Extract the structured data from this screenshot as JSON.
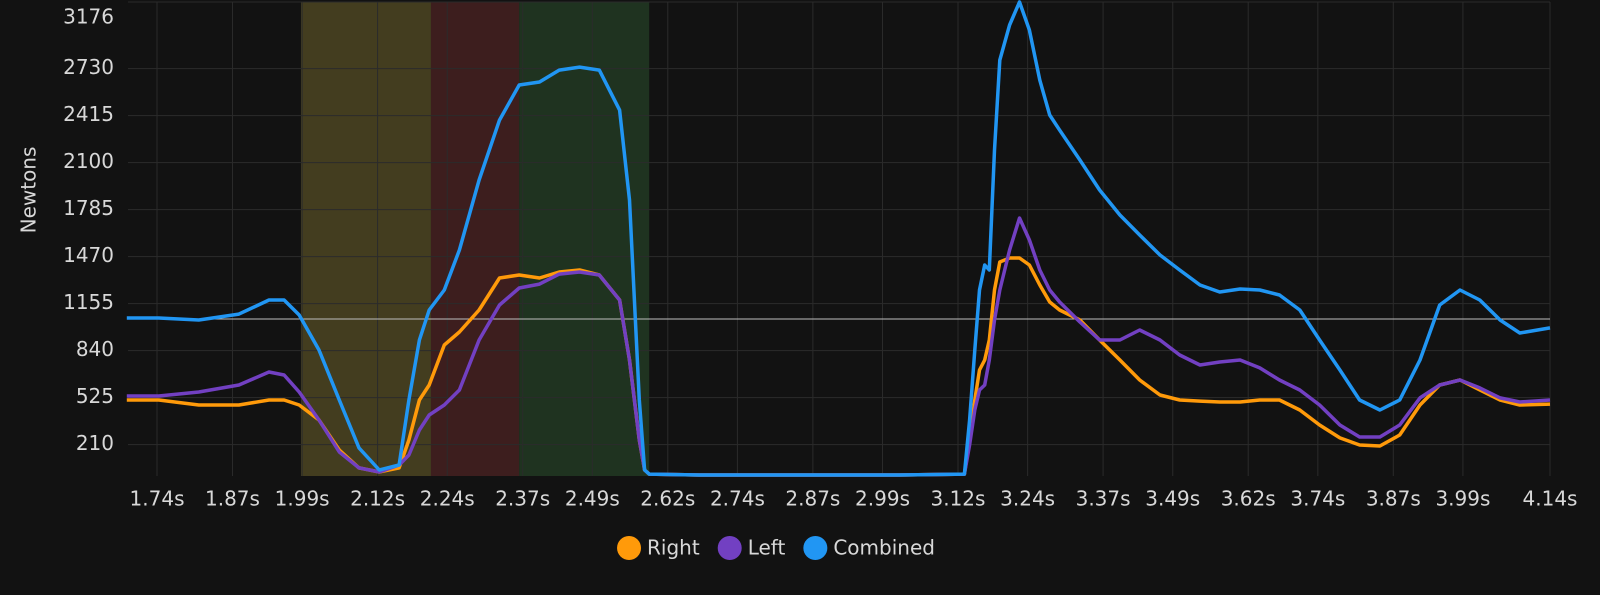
{
  "chart_data": {
    "type": "line",
    "y_label": "Newtons",
    "xlim": [
      1.69,
      4.14
    ],
    "ylim": [
      0,
      3176
    ],
    "xticks": [
      {
        "value": 1.74,
        "label": "1.74s"
      },
      {
        "value": 1.87,
        "label": "1.87s"
      },
      {
        "value": 1.99,
        "label": "1.99s"
      },
      {
        "value": 2.12,
        "label": "2.12s"
      },
      {
        "value": 2.24,
        "label": "2.24s"
      },
      {
        "value": 2.37,
        "label": "2.37s"
      },
      {
        "value": 2.49,
        "label": "2.49s"
      },
      {
        "value": 2.62,
        "label": "2.62s"
      },
      {
        "value": 2.74,
        "label": "2.74s"
      },
      {
        "value": 2.87,
        "label": "2.87s"
      },
      {
        "value": 2.99,
        "label": "2.99s"
      },
      {
        "value": 3.12,
        "label": "3.12s"
      },
      {
        "value": 3.24,
        "label": "3.24s"
      },
      {
        "value": 3.37,
        "label": "3.37s"
      },
      {
        "value": 3.49,
        "label": "3.49s"
      },
      {
        "value": 3.62,
        "label": "3.62s"
      },
      {
        "value": 3.74,
        "label": "3.74s"
      },
      {
        "value": 3.87,
        "label": "3.87s"
      },
      {
        "value": 3.99,
        "label": "3.99s"
      },
      {
        "value": 4.14,
        "label": "4.14s"
      }
    ],
    "yticks": [
      210,
      525,
      840,
      1155,
      1470,
      1785,
      2100,
      2415,
      2730,
      3176
    ],
    "grid": true,
    "reference_line": 1052,
    "regions": [
      {
        "start": 1.988,
        "end": 2.212,
        "color": "#433d1f"
      },
      {
        "start": 2.212,
        "end": 2.364,
        "color": "#3d1e1e"
      },
      {
        "start": 2.364,
        "end": 2.588,
        "color": "#1f3320"
      }
    ],
    "x": [
      1.688,
      1.743,
      1.812,
      1.881,
      1.933,
      1.959,
      1.985,
      2.019,
      2.054,
      2.088,
      2.123,
      2.157,
      2.174,
      2.192,
      2.209,
      2.235,
      2.261,
      2.295,
      2.33,
      2.364,
      2.399,
      2.433,
      2.468,
      2.502,
      2.537,
      2.554,
      2.571,
      2.58,
      2.588,
      2.674,
      2.847,
      3.019,
      3.131,
      3.14,
      3.149,
      3.157,
      3.166,
      3.174,
      3.183,
      3.192,
      3.209,
      3.226,
      3.243,
      3.261,
      3.278,
      3.295,
      3.33,
      3.364,
      3.399,
      3.433,
      3.468,
      3.502,
      3.537,
      3.571,
      3.606,
      3.64,
      3.674,
      3.709,
      3.743,
      3.778,
      3.812,
      3.847,
      3.881,
      3.916,
      3.95,
      3.985,
      4.019,
      4.054,
      4.088,
      4.14
    ],
    "series": [
      {
        "name": "Right",
        "color": "#ff9a0a",
        "values": [
          509,
          509,
          476,
          476,
          509,
          509,
          476,
          375,
          174,
          54,
          27,
          54,
          241,
          509,
          610,
          878,
          965,
          1112,
          1327,
          1347,
          1327,
          1367,
          1380,
          1347,
          1179,
          777,
          241,
          40,
          13,
          7,
          7,
          7,
          13,
          241,
          509,
          710,
          777,
          911,
          1246,
          1434,
          1461,
          1461,
          1414,
          1280,
          1166,
          1112,
          1045,
          911,
          777,
          643,
          543,
          509,
          502,
          496,
          496,
          509,
          509,
          442,
          342,
          255,
          208,
          201,
          275,
          476,
          610,
          643,
          576,
          509,
          476,
          482
        ]
      },
      {
        "name": "Left",
        "color": "#7240c2",
        "values": [
          536,
          536,
          563,
          610,
          697,
          677,
          563,
          375,
          161,
          54,
          27,
          74,
          141,
          308,
          409,
          476,
          576,
          911,
          1146,
          1260,
          1286,
          1353,
          1367,
          1347,
          1179,
          777,
          241,
          40,
          13,
          7,
          7,
          7,
          13,
          208,
          442,
          576,
          610,
          777,
          1045,
          1246,
          1514,
          1729,
          1581,
          1380,
          1246,
          1166,
          1032,
          911,
          911,
          978,
          911,
          811,
          744,
          764,
          777,
          724,
          643,
          576,
          476,
          342,
          261,
          261,
          342,
          523,
          610,
          643,
          590,
          523,
          496,
          509
        ]
      },
      {
        "name": "Combined",
        "color": "#2196f3",
        "values": [
          1059,
          1059,
          1045,
          1085,
          1179,
          1179,
          1079,
          844,
          509,
          188,
          40,
          74,
          509,
          911,
          1112,
          1246,
          1514,
          1983,
          2385,
          2620,
          2640,
          2720,
          2740,
          2720,
          2452,
          1849,
          509,
          40,
          13,
          7,
          7,
          7,
          13,
          375,
          844,
          1246,
          1414,
          1380,
          2184,
          2787,
          3022,
          3176,
          2988,
          2653,
          2419,
          2318,
          2117,
          1916,
          1749,
          1615,
          1481,
          1380,
          1280,
          1233,
          1253,
          1246,
          1213,
          1112,
          911,
          710,
          509,
          442,
          509,
          777,
          1146,
          1246,
          1179,
          1045,
          958,
          992
        ]
      }
    ]
  }
}
